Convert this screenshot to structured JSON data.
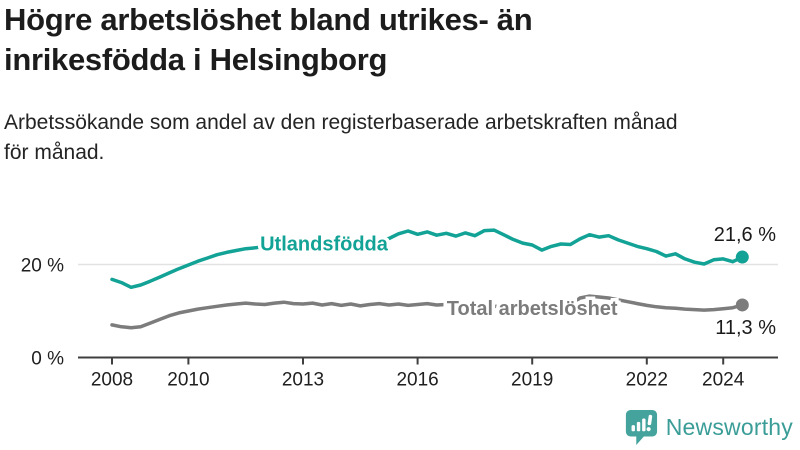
{
  "header": {
    "title_line1": "Högre arbetslöshet bland utrikes- än",
    "title_line2": "inrikesfödda i Helsingborg",
    "subtitle_line1": "Arbetssökande som andel av den registerbaserade arbetskraften månad",
    "subtitle_line2": "för månad."
  },
  "chart_data": {
    "type": "line",
    "title": "Högre arbetslöshet bland utrikes- än inrikesfödda i Helsingborg",
    "subtitle": "Arbetssökande som andel av den registerbaserade arbetskraften månad för månad.",
    "xlabel": "",
    "ylabel": "",
    "x_start": 2008,
    "x_step": 0.25,
    "x_ticks": [
      2008,
      2010,
      2013,
      2016,
      2019,
      2022,
      2024
    ],
    "y_ticks": [
      {
        "value": 0,
        "label": "0 %"
      },
      {
        "value": 20,
        "label": "20 %"
      }
    ],
    "ylim": [
      0,
      30
    ],
    "grid": "horizontal-only",
    "legend_position": "inline-on-line",
    "series": [
      {
        "name": "Utlandsfödda",
        "color": "#12a296",
        "end_label": "21,6 %",
        "end_label_pos": "above",
        "label_at_x": 2013.55,
        "values": [
          16.8,
          16.1,
          15.1,
          15.6,
          16.4,
          17.3,
          18.2,
          19.1,
          19.9,
          20.7,
          21.4,
          22.1,
          22.6,
          23.0,
          23.4,
          23.6,
          23.9,
          24.0,
          24.2,
          24.3,
          24.4,
          24.4,
          24.5,
          24.6,
          24.7,
          24.8,
          25.0,
          25.1,
          25.3,
          25.6,
          26.6,
          27.2,
          26.5,
          27.0,
          26.3,
          26.7,
          26.1,
          26.8,
          26.2,
          27.3,
          27.4,
          26.4,
          25.4,
          24.6,
          24.2,
          23.1,
          23.9,
          24.4,
          24.3,
          25.5,
          26.4,
          25.9,
          26.2,
          25.3,
          24.6,
          23.9,
          23.4,
          22.8,
          21.8,
          22.3,
          21.2,
          20.5,
          20.1,
          21.0,
          21.2,
          20.6,
          21.6
        ]
      },
      {
        "name": "Total arbetslöshet",
        "color": "#7c7c7c",
        "end_label": "11,3 %",
        "end_label_pos": "below",
        "label_at_x": 2019.0,
        "values": [
          7.0,
          6.6,
          6.4,
          6.6,
          7.4,
          8.2,
          9.0,
          9.6,
          10.0,
          10.4,
          10.7,
          11.0,
          11.3,
          11.5,
          11.7,
          11.5,
          11.4,
          11.7,
          11.9,
          11.6,
          11.5,
          11.7,
          11.3,
          11.6,
          11.2,
          11.5,
          11.1,
          11.4,
          11.6,
          11.3,
          11.5,
          11.2,
          11.4,
          11.6,
          11.3,
          11.4,
          11.2,
          11.3,
          11.1,
          11.2,
          11.0,
          10.9,
          10.8,
          10.7,
          10.6,
          10.7,
          10.8,
          11.0,
          11.2,
          12.8,
          13.2,
          13.0,
          12.8,
          12.4,
          12.0,
          11.6,
          11.2,
          10.9,
          10.7,
          10.6,
          10.4,
          10.3,
          10.2,
          10.3,
          10.5,
          10.7,
          11.3
        ]
      }
    ]
  },
  "branding": {
    "logo_text": "Newsworthy",
    "logo_color": "#3a9d97",
    "logo_icon": "bar-chart-speech-bubble-icon"
  }
}
